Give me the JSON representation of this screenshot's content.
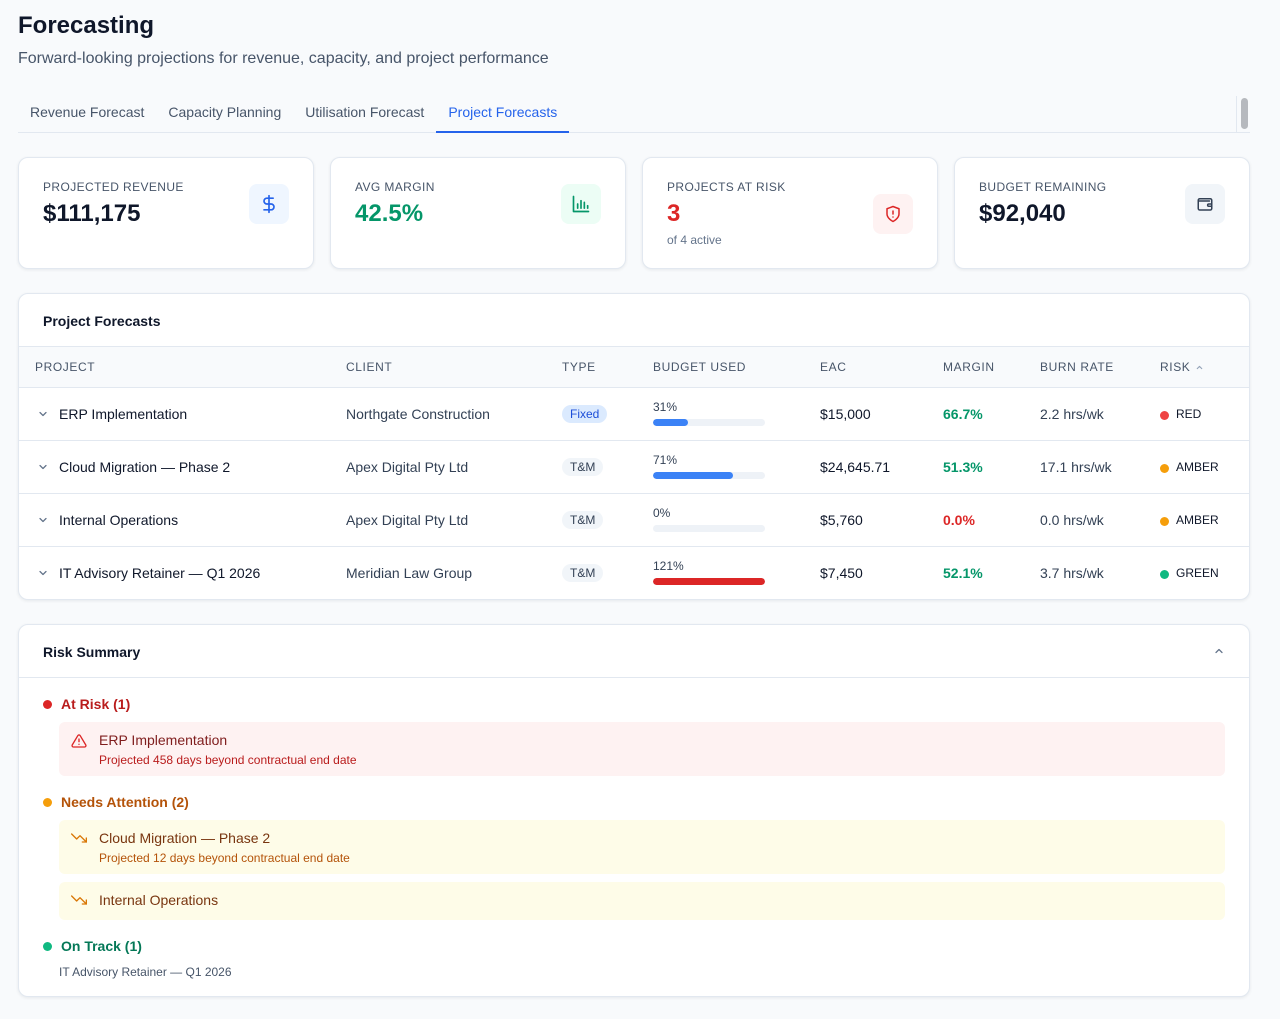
{
  "page": {
    "title": "Forecasting",
    "subtitle": "Forward-looking projections for revenue, capacity, and project performance"
  },
  "tabs": [
    {
      "label": "Revenue Forecast",
      "active": false
    },
    {
      "label": "Capacity Planning",
      "active": false
    },
    {
      "label": "Utilisation Forecast",
      "active": false
    },
    {
      "label": "Project Forecasts",
      "active": true
    }
  ],
  "stats": {
    "projected_revenue": {
      "label": "PROJECTED REVENUE",
      "value": "$111,175",
      "icon": "dollar-icon"
    },
    "avg_margin": {
      "label": "AVG MARGIN",
      "value": "42.5%",
      "icon": "bar-chart-icon"
    },
    "projects_at_risk": {
      "label": "PROJECTS AT RISK",
      "value": "3",
      "sub": "of 4 active",
      "icon": "shield-alert-icon"
    },
    "budget_remaining": {
      "label": "BUDGET REMAINING",
      "value": "$92,040",
      "icon": "wallet-icon"
    }
  },
  "forecasts": {
    "title": "Project Forecasts",
    "columns": {
      "project": "PROJECT",
      "client": "CLIENT",
      "type": "TYPE",
      "budget_used": "BUDGET USED",
      "eac": "EAC",
      "margin": "MARGIN",
      "burn_rate": "BURN RATE",
      "risk": "RISK"
    },
    "rows": [
      {
        "project": "ERP Implementation",
        "client": "Northgate Construction",
        "type": "Fixed",
        "budget_pct": "31%",
        "budget_fraction": 0.31,
        "eac": "$15,000",
        "margin": "66.7%",
        "burn_rate": "2.2 hrs/wk",
        "risk": "RED"
      },
      {
        "project": "Cloud Migration — Phase 2",
        "client": "Apex Digital Pty Ltd",
        "type": "T&M",
        "budget_pct": "71%",
        "budget_fraction": 0.71,
        "eac": "$24,645.71",
        "margin": "51.3%",
        "burn_rate": "17.1 hrs/wk",
        "risk": "AMBER"
      },
      {
        "project": "Internal Operations",
        "client": "Apex Digital Pty Ltd",
        "type": "T&M",
        "budget_pct": "0%",
        "budget_fraction": 0.0,
        "eac": "$5,760",
        "margin": "0.0%",
        "burn_rate": "0.0 hrs/wk",
        "risk": "AMBER"
      },
      {
        "project": "IT Advisory Retainer — Q1 2026",
        "client": "Meridian Law Group",
        "type": "T&M",
        "budget_pct": "121%",
        "budget_fraction": 1.21,
        "eac": "$7,450",
        "margin": "52.1%",
        "burn_rate": "3.7 hrs/wk",
        "risk": "GREEN"
      }
    ]
  },
  "risk_summary": {
    "title": "Risk Summary",
    "at_risk": {
      "label": "At Risk (1)",
      "items": [
        {
          "title": "ERP Implementation",
          "detail": "Projected 458 days beyond contractual end date"
        }
      ]
    },
    "needs_attention": {
      "label": "Needs Attention (2)",
      "items": [
        {
          "title": "Cloud Migration — Phase 2",
          "detail": "Projected 12 days beyond contractual end date"
        },
        {
          "title": "Internal Operations"
        }
      ]
    },
    "on_track": {
      "label": "On Track (1)",
      "items": [
        "IT Advisory Retainer — Q1 2026"
      ]
    }
  },
  "colors": {
    "accent": "#2563eb",
    "green": "#059669",
    "red": "#dc2626",
    "amber": "#f59e0b",
    "risk_red_dot": "#ef4444",
    "risk_green_dot": "#10b981"
  }
}
